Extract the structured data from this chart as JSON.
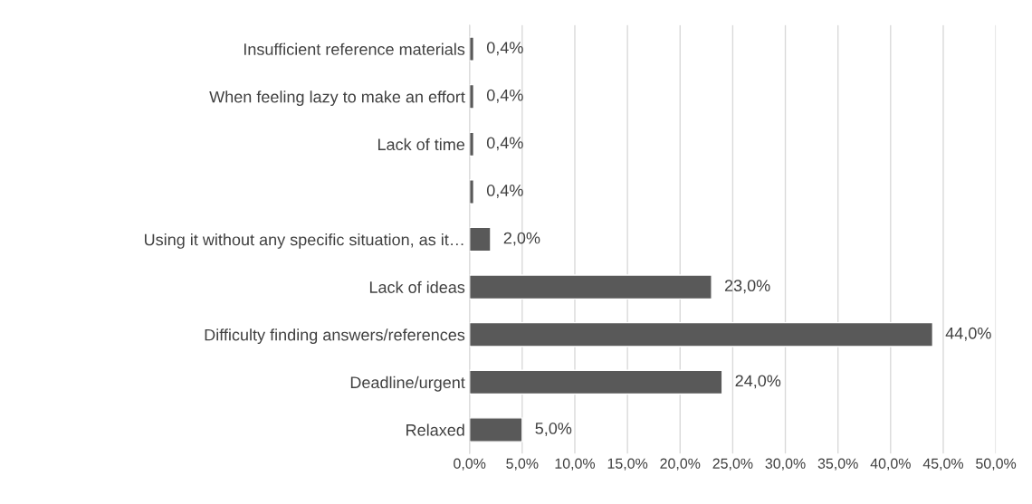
{
  "chart_data": {
    "type": "bar",
    "orientation": "horizontal",
    "categories": [
      "Insufficient reference materials",
      "When feeling lazy to make an effort",
      "Lack of time",
      null,
      "Using it without any specific situation, as it…",
      "Lack of ideas",
      "Difficulty finding answers/references",
      "Deadline/urgent",
      "Relaxed"
    ],
    "values": [
      0.4,
      0.4,
      0.4,
      0.4,
      2.0,
      23.0,
      44.0,
      24.0,
      5.0
    ],
    "value_labels": [
      "0,4%",
      "0,4%",
      "0,4%",
      "0,4%",
      "2,0%",
      "23,0%",
      "44,0%",
      "24,0%",
      "5,0%"
    ],
    "color": "#595959",
    "xlim": [
      0,
      50
    ],
    "xticks": [
      {
        "value": 0,
        "label": "0,0%"
      },
      {
        "value": 5,
        "label": "5,0%"
      },
      {
        "value": 10,
        "label": "10,0%"
      },
      {
        "value": 15,
        "label": "15,0%"
      },
      {
        "value": 20,
        "label": "20,0%"
      },
      {
        "value": 25,
        "label": "25,0%"
      },
      {
        "value": 30,
        "label": "30,0%"
      },
      {
        "value": 35,
        "label": "35,0%"
      },
      {
        "value": 40,
        "label": "40,0%"
      },
      {
        "value": 45,
        "label": "45,0%"
      },
      {
        "value": 50,
        "label": "50,0%"
      }
    ],
    "grid": "x",
    "legend": false
  }
}
